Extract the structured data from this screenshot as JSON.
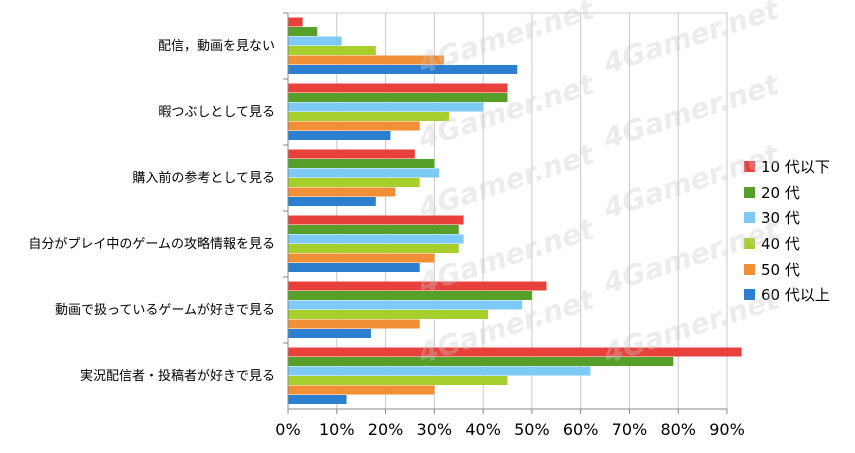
{
  "chart_data": {
    "type": "bar",
    "orientation": "horizontal",
    "categories": [
      "配信，動画を見ない",
      "暇つぶしとして見る",
      "購入前の参考として見る",
      "自分がプレイ中のゲームの攻略情報を見る",
      "動画で扱っているゲームが好きで見る",
      "実況配信者・投稿者が好きで見る"
    ],
    "series": [
      {
        "name": "10 代以下",
        "color": "#e8403a",
        "values": [
          3,
          45,
          26,
          36,
          53,
          93
        ]
      },
      {
        "name": "20 代",
        "color": "#56a02a",
        "values": [
          6,
          45,
          30,
          35,
          50,
          79
        ]
      },
      {
        "name": "30 代",
        "color": "#7dcaf6",
        "values": [
          11,
          40,
          31,
          36,
          48,
          62
        ]
      },
      {
        "name": "40 代",
        "color": "#a7cf2b",
        "values": [
          18,
          33,
          27,
          35,
          41,
          45
        ]
      },
      {
        "name": "50 代",
        "color": "#f08f35",
        "values": [
          32,
          27,
          22,
          30,
          27,
          30
        ]
      },
      {
        "name": "60 代以上",
        "color": "#2c7fcf",
        "values": [
          47,
          21,
          18,
          27,
          17,
          12
        ]
      }
    ],
    "xlim": [
      0,
      100
    ],
    "xticks": [
      "0%",
      "10%",
      "20%",
      "30%",
      "40%",
      "50%",
      "60%",
      "70%",
      "80%",
      "90%"
    ],
    "grid": true,
    "legend_position": "right"
  },
  "watermark": "4Gamer.net"
}
